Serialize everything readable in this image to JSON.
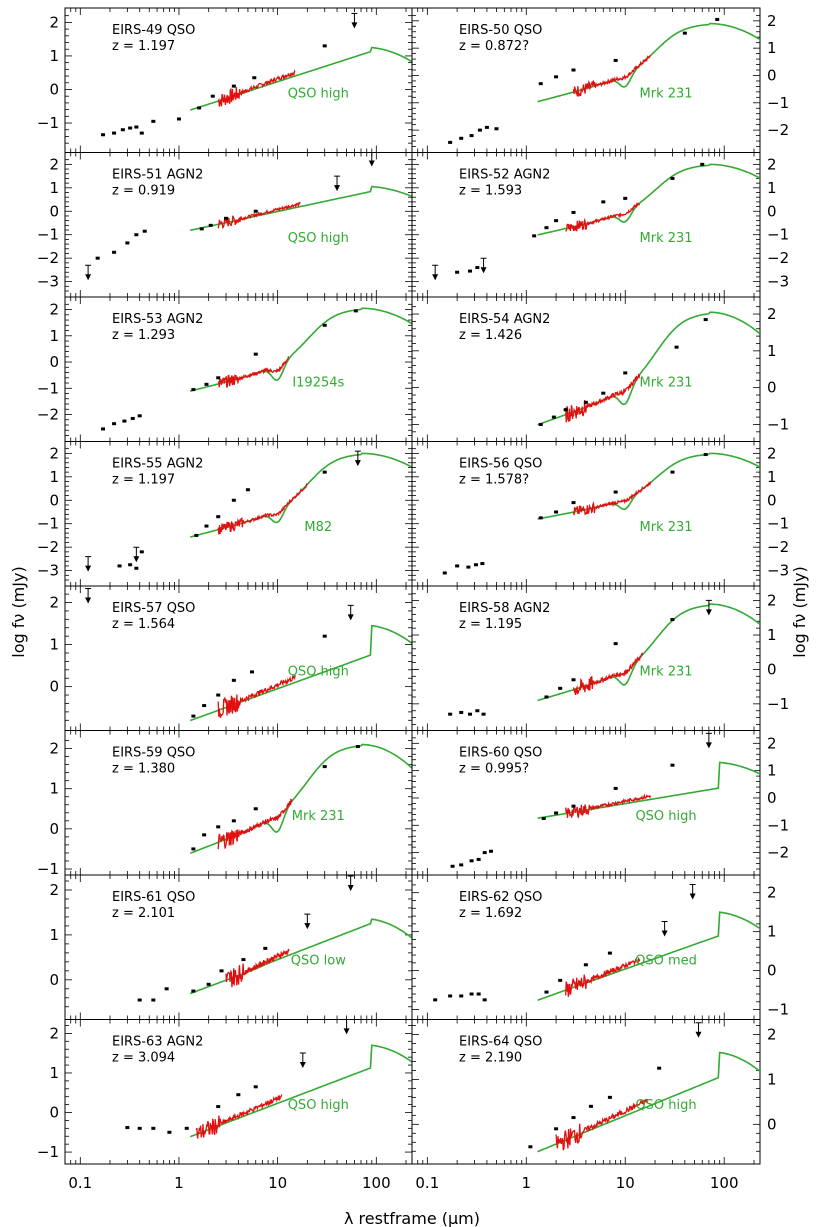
{
  "chart_data": {
    "type": "scatter",
    "title": "",
    "xlabel": "λ restframe (μm)",
    "ylabel": "log fν (mJy)",
    "xscale": "log",
    "xlim": [
      0.07,
      230
    ],
    "xticks": [
      "0.1",
      "1",
      "10",
      "100"
    ],
    "panels": [
      {
        "name": "EIRS-49",
        "type": "QSO",
        "z": "z = 1.197",
        "template": "QSO high",
        "side": "left",
        "ylim": [
          -1.7,
          2.25
        ],
        "yticks": [
          -1,
          0,
          1,
          2
        ],
        "model": "qso",
        "model_y0": -0.55,
        "model_slope": 0.95,
        "peak_y": 1.25,
        "spec": [
          2.5,
          15
        ],
        "photometry": [
          [
            0.17,
            -1.35
          ],
          [
            0.22,
            -1.3
          ],
          [
            0.27,
            -1.2
          ],
          [
            0.32,
            -1.15
          ],
          [
            0.37,
            -1.12
          ],
          [
            0.42,
            -1.3
          ],
          [
            0.55,
            -0.95
          ],
          [
            1.0,
            -0.88
          ],
          [
            1.6,
            -0.55
          ],
          [
            2.2,
            -0.2
          ],
          [
            3.6,
            0.1
          ],
          [
            5.8,
            0.35
          ],
          [
            30,
            1.3
          ]
        ],
        "limits": [
          [
            60,
            1.85
          ]
        ]
      },
      {
        "name": "EIRS-50",
        "type": "QSO",
        "z": "z = 0.872?",
        "template": "Mrk 231",
        "side": "right",
        "ylim": [
          -2.6,
          2.25
        ],
        "yticks": [
          -2,
          -1,
          0,
          1,
          2
        ],
        "model": "mrk",
        "model_y0": -0.9,
        "model_slope": 0.95,
        "peak_y": 1.9,
        "spec": [
          3,
          18
        ],
        "photometry": [
          [
            0.17,
            -2.45
          ],
          [
            0.22,
            -2.3
          ],
          [
            0.28,
            -2.2
          ],
          [
            0.34,
            -2.0
          ],
          [
            0.4,
            -1.9
          ],
          [
            0.5,
            -1.95
          ],
          [
            1.4,
            -0.3
          ],
          [
            2.0,
            -0.05
          ],
          [
            3.0,
            0.2
          ],
          [
            8.0,
            0.55
          ],
          [
            40,
            1.55
          ],
          [
            85,
            2.05
          ]
        ],
        "limits": []
      },
      {
        "name": "EIRS-51",
        "type": "AGN2",
        "z": "z = 0.919",
        "template": "QSO high",
        "side": "left",
        "ylim": [
          -3.4,
          2.25
        ],
        "yticks": [
          -3,
          -2,
          -1,
          0,
          1,
          2
        ],
        "model": "qso",
        "model_y0": -0.75,
        "model_slope": 0.9,
        "peak_y": 1.05,
        "spec": [
          2.5,
          17
        ],
        "photometry": [
          [
            0.15,
            -2.0
          ],
          [
            0.22,
            -1.75
          ],
          [
            0.3,
            -1.35
          ],
          [
            0.37,
            -1.0
          ],
          [
            0.45,
            -0.85
          ],
          [
            1.7,
            -0.75
          ],
          [
            2.1,
            -0.6
          ],
          [
            3.0,
            -0.3
          ],
          [
            6.0,
            0.0
          ]
        ],
        "limits": [
          [
            0.12,
            -2.9
          ],
          [
            40,
            0.9
          ],
          [
            90,
            1.95
          ]
        ]
      },
      {
        "name": "EIRS-52",
        "type": "AGN2",
        "z": "z = 1.593",
        "template": "Mrk 231",
        "side": "right",
        "ylim": [
          -3.4,
          2.25
        ],
        "yticks": [
          -3,
          -2,
          -1,
          0,
          1,
          2
        ],
        "model": "mrk",
        "model_y0": -0.95,
        "model_slope": 0.95,
        "peak_y": 2.0,
        "spec": [
          2.5,
          14
        ],
        "photometry": [
          [
            0.2,
            -2.6
          ],
          [
            0.27,
            -2.55
          ],
          [
            0.32,
            -2.4
          ],
          [
            1.2,
            -1.05
          ],
          [
            1.6,
            -0.7
          ],
          [
            2.0,
            -0.4
          ],
          [
            3.0,
            -0.05
          ],
          [
            6.0,
            0.4
          ],
          [
            10,
            0.55
          ],
          [
            30,
            1.4
          ],
          [
            60,
            2.0
          ]
        ],
        "limits": [
          [
            0.12,
            -2.9
          ],
          [
            0.37,
            -2.6
          ]
        ]
      },
      {
        "name": "EIRS-53",
        "type": "AGN2",
        "z": "z = 1.293",
        "template": "I19254s",
        "side": "left",
        "ylim": [
          -2.8,
          2.25
        ],
        "yticks": [
          -2,
          -1,
          0,
          1,
          2
        ],
        "model": "i19",
        "model_y0": -1.05,
        "model_slope": 0.95,
        "peak_y": 2.05,
        "spec": [
          2.5,
          13
        ],
        "photometry": [
          [
            0.17,
            -2.55
          ],
          [
            0.22,
            -2.35
          ],
          [
            0.28,
            -2.25
          ],
          [
            0.34,
            -2.15
          ],
          [
            0.4,
            -2.05
          ],
          [
            1.4,
            -1.05
          ],
          [
            1.9,
            -0.85
          ],
          [
            2.5,
            -0.6
          ],
          [
            6.0,
            0.3
          ],
          [
            30,
            1.4
          ],
          [
            62,
            1.95
          ]
        ],
        "limits": []
      },
      {
        "name": "EIRS-54",
        "type": "AGN2",
        "z": "z = 1.426",
        "template": "Mrk 231",
        "side": "right",
        "ylim": [
          -1.3,
          2.3
        ],
        "yticks": [
          -1,
          0,
          1,
          2
        ],
        "model": "mrk",
        "model_y0": -0.95,
        "model_slope": 0.95,
        "peak_y": 2.05,
        "spec": [
          2.5,
          14
        ],
        "photometry": [
          [
            1.4,
            -1.0
          ],
          [
            1.9,
            -0.8
          ],
          [
            2.5,
            -0.6
          ],
          [
            4.0,
            -0.4
          ],
          [
            6.0,
            -0.15
          ],
          [
            10,
            0.4
          ],
          [
            33,
            1.1
          ],
          [
            65,
            1.85
          ]
        ],
        "limits": []
      },
      {
        "name": "EIRS-55",
        "type": "AGN2",
        "z": "z = 1.197",
        "template": "M82",
        "side": "left",
        "ylim": [
          -3.4,
          2.25
        ],
        "yticks": [
          -3,
          -2,
          -1,
          0,
          1,
          2
        ],
        "model": "m82",
        "model_y0": -1.5,
        "model_slope": 1.1,
        "peak_y": 2.0,
        "spec": [
          2.5,
          20
        ],
        "photometry": [
          [
            0.25,
            -2.8
          ],
          [
            0.32,
            -2.75
          ],
          [
            0.37,
            -2.9
          ],
          [
            0.42,
            -2.2
          ],
          [
            1.5,
            -1.5
          ],
          [
            1.9,
            -1.1
          ],
          [
            2.5,
            -0.7
          ],
          [
            3.6,
            0.0
          ],
          [
            5.0,
            0.45
          ],
          [
            30,
            1.2
          ]
        ],
        "limits": [
          [
            0.12,
            -3.0
          ],
          [
            0.37,
            -2.6
          ],
          [
            65,
            1.5
          ]
        ]
      },
      {
        "name": "EIRS-56",
        "type": "QSO",
        "z": "z = 1.578?",
        "template": "Mrk 231",
        "side": "right",
        "ylim": [
          -3.4,
          2.25
        ],
        "yticks": [
          -3,
          -2,
          -1,
          0,
          1,
          2
        ],
        "model": "mrk",
        "model_y0": -0.75,
        "model_slope": 0.8,
        "peak_y": 2.0,
        "spec": [
          3,
          18
        ],
        "photometry": [
          [
            0.15,
            -3.1
          ],
          [
            0.2,
            -2.8
          ],
          [
            0.26,
            -2.85
          ],
          [
            0.31,
            -2.75
          ],
          [
            0.36,
            -2.7
          ],
          [
            1.4,
            -0.75
          ],
          [
            2.0,
            -0.5
          ],
          [
            3.0,
            -0.1
          ],
          [
            8.0,
            0.35
          ],
          [
            30,
            1.2
          ],
          [
            65,
            1.95
          ]
        ],
        "limits": []
      },
      {
        "name": "EIRS-57",
        "type": "QSO",
        "z": "z = 1.564",
        "template": "QSO high",
        "side": "left",
        "ylim": [
          -0.9,
          2.25
        ],
        "yticks": [
          0,
          1,
          2
        ],
        "model": "qso",
        "model_y0": -0.75,
        "model_slope": 0.85,
        "peak_y": 1.45,
        "spec": [
          2.5,
          15
        ],
        "photometry": [
          [
            1.4,
            -0.7
          ],
          [
            1.8,
            -0.45
          ],
          [
            2.5,
            -0.2
          ],
          [
            3.6,
            0.15
          ],
          [
            5.5,
            0.35
          ],
          [
            30,
            1.2
          ]
        ],
        "limits": [
          [
            0.12,
            2.0
          ],
          [
            55,
            1.6
          ]
        ]
      },
      {
        "name": "EIRS-58",
        "type": "AGN2",
        "z": "z = 1.195",
        "template": "Mrk 231",
        "side": "right",
        "ylim": [
          -1.6,
          2.25
        ],
        "yticks": [
          -1,
          0,
          1,
          2
        ],
        "model": "mrk",
        "model_y0": -0.85,
        "model_slope": 0.85,
        "peak_y": 1.9,
        "spec": [
          3,
          15
        ],
        "photometry": [
          [
            0.17,
            -1.3
          ],
          [
            0.22,
            -1.25
          ],
          [
            0.27,
            -1.3
          ],
          [
            0.32,
            -1.2
          ],
          [
            0.37,
            -1.3
          ],
          [
            1.6,
            -0.8
          ],
          [
            2.2,
            -0.55
          ],
          [
            3.0,
            -0.3
          ],
          [
            8.0,
            0.75
          ],
          [
            30,
            1.45
          ]
        ],
        "limits": [
          [
            70,
            1.6
          ]
        ]
      },
      {
        "name": "EIRS-59",
        "type": "QSO",
        "z": "z = 1.380",
        "template": "Mrk 231",
        "side": "left",
        "ylim": [
          -1.0,
          2.3
        ],
        "yticks": [
          -1,
          0,
          1,
          2
        ],
        "model": "mrk",
        "model_y0": -0.55,
        "model_slope": 0.95,
        "peak_y": 2.1,
        "spec": [
          2.5,
          14
        ],
        "photometry": [
          [
            1.4,
            -0.5
          ],
          [
            1.8,
            -0.15
          ],
          [
            2.5,
            0.05
          ],
          [
            3.6,
            0.2
          ],
          [
            6.0,
            0.5
          ],
          [
            30,
            1.55
          ],
          [
            65,
            2.05
          ]
        ],
        "limits": []
      },
      {
        "name": "EIRS-60",
        "type": "QSO",
        "z": "z = 0.995?",
        "template": "QSO high",
        "side": "right",
        "ylim": [
          -2.6,
          2.25
        ],
        "yticks": [
          -2,
          -1,
          0,
          1,
          2
        ],
        "model": "qso",
        "model_y0": -0.7,
        "model_slope": 0.6,
        "peak_y": 1.3,
        "spec": [
          2.5,
          18
        ],
        "photometry": [
          [
            0.18,
            -2.5
          ],
          [
            0.22,
            -2.45
          ],
          [
            0.28,
            -2.3
          ],
          [
            0.33,
            -2.25
          ],
          [
            0.38,
            -2.0
          ],
          [
            0.44,
            -1.95
          ],
          [
            1.5,
            -0.75
          ],
          [
            2.0,
            -0.55
          ],
          [
            3.0,
            -0.3
          ],
          [
            8.0,
            0.35
          ],
          [
            30,
            1.2
          ]
        ],
        "limits": [
          [
            70,
            1.85
          ]
        ]
      },
      {
        "name": "EIRS-61",
        "type": "QSO",
        "z": "z = 2.101",
        "template": "QSO low",
        "side": "left",
        "ylim": [
          -0.75,
          2.2
        ],
        "yticks": [
          0,
          1,
          2
        ],
        "model": "qso",
        "model_y0": -0.25,
        "model_slope": 0.85,
        "peak_y": 1.35,
        "spec": [
          3,
          13
        ],
        "photometry": [
          [
            0.4,
            -0.45
          ],
          [
            0.55,
            -0.45
          ],
          [
            0.75,
            -0.2
          ],
          [
            1.4,
            -0.25
          ],
          [
            2.0,
            -0.1
          ],
          [
            2.7,
            0.2
          ],
          [
            4.5,
            0.45
          ],
          [
            7.5,
            0.7
          ]
        ],
        "limits": [
          [
            20,
            1.15
          ],
          [
            55,
            2.0
          ]
        ]
      },
      {
        "name": "EIRS-62",
        "type": "QSO",
        "z": "z = 1.692",
        "template": "QSO med",
        "side": "right",
        "ylim": [
          -1.1,
          2.3
        ],
        "yticks": [
          -1,
          0,
          1,
          2
        ],
        "model": "qso",
        "model_y0": -0.7,
        "model_slope": 0.9,
        "peak_y": 1.5,
        "spec": [
          2.5,
          14
        ],
        "photometry": [
          [
            0.12,
            -0.75
          ],
          [
            0.17,
            -0.65
          ],
          [
            0.22,
            -0.65
          ],
          [
            0.28,
            -0.6
          ],
          [
            0.33,
            -0.6
          ],
          [
            0.38,
            -0.75
          ],
          [
            1.6,
            -0.55
          ],
          [
            2.2,
            -0.25
          ],
          [
            4.0,
            0.15
          ],
          [
            7.0,
            0.45
          ]
        ],
        "limits": [
          [
            25,
            0.9
          ],
          [
            48,
            1.85
          ]
        ]
      },
      {
        "name": "EIRS-63",
        "type": "AGN2",
        "z": "z = 3.094",
        "template": "QSO high",
        "side": "left",
        "ylim": [
          -1.15,
          2.2
        ],
        "yticks": [
          -1,
          0,
          1,
          2
        ],
        "model": "qso",
        "model_y0": -0.55,
        "model_slope": 0.95,
        "peak_y": 1.7,
        "spec": [
          1.5,
          11
        ],
        "photometry": [
          [
            0.3,
            -0.38
          ],
          [
            0.4,
            -0.4
          ],
          [
            0.55,
            -0.4
          ],
          [
            0.8,
            -0.5
          ],
          [
            1.2,
            -0.4
          ],
          [
            2.5,
            0.15
          ],
          [
            4.0,
            0.45
          ],
          [
            6.0,
            0.65
          ]
        ],
        "limits": [
          [
            18,
            1.15
          ],
          [
            50,
            2.0
          ]
        ]
      },
      {
        "name": "EIRS-64",
        "type": "QSO",
        "z": "z = 2.190",
        "template": "QSO high",
        "side": "right",
        "ylim": [
          -0.75,
          2.2
        ],
        "yticks": [
          0,
          1,
          2
        ],
        "model": "qso",
        "model_y0": -0.55,
        "model_slope": 0.9,
        "peak_y": 1.6,
        "spec": [
          2.0,
          17
        ],
        "photometry": [
          [
            1.1,
            -0.5
          ],
          [
            2.0,
            -0.1
          ],
          [
            3.0,
            0.15
          ],
          [
            4.5,
            0.4
          ],
          [
            7.0,
            0.6
          ],
          [
            22,
            1.25
          ]
        ],
        "limits": [
          [
            55,
            1.95
          ]
        ]
      }
    ]
  }
}
